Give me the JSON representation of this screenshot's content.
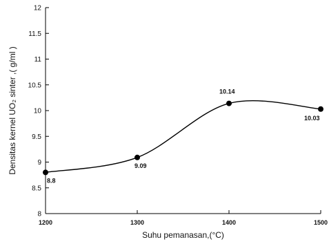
{
  "chart_data": {
    "type": "line",
    "title": "",
    "xlabel": "Suhu pemanasan,(°C)",
    "ylabel": "Densitas kernel UO₂ sinter ,( g/ml )",
    "xlim": [
      1200,
      1500
    ],
    "ylim": [
      8,
      12
    ],
    "x_ticks": [
      1200,
      1300,
      1400,
      1500
    ],
    "x_tick_labels": [
      "1200",
      "1300",
      "1400",
      "1500"
    ],
    "y_ticks": [
      8,
      8.5,
      9,
      9.5,
      10,
      10.5,
      11,
      11.5,
      12
    ],
    "y_tick_labels": [
      "8",
      "8.5",
      "9",
      "9.5",
      "10",
      "10.5",
      "11",
      "11.5",
      "12"
    ],
    "grid": false,
    "legend": "none",
    "line_color": "#000000",
    "series": [
      {
        "x": [
          1200,
          1300,
          1400,
          1500
        ],
        "y": [
          8.8,
          9.09,
          10.14,
          10.03
        ],
        "labels": [
          "8.8",
          "9.09",
          "10.14",
          "10.03"
        ],
        "smooth": true
      }
    ]
  }
}
